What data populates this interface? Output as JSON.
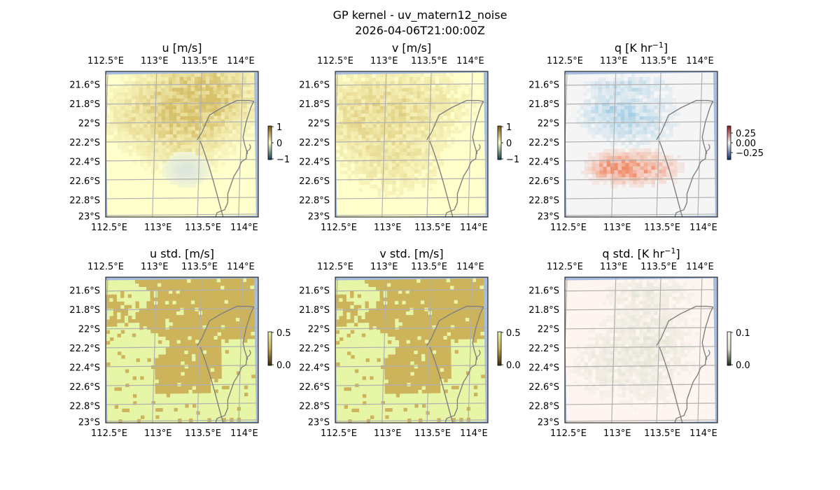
{
  "figure": {
    "title_line1": "GP kernel - uv_matern12_noise",
    "title_line2": "2026-04-06T21:00:00Z"
  },
  "chart_data": [
    {
      "type": "heatmap",
      "id": "u",
      "title": "u [m/s]",
      "lon_ticks": [
        "112.5°E",
        "113°E",
        "113.5°E",
        "114°E"
      ],
      "lat_ticks": [
        "21.6°S",
        "21.8°S",
        "22°S",
        "22.2°S",
        "22.4°S",
        "22.6°S",
        "22.8°S",
        "23°S"
      ],
      "colorbar": {
        "ticks": [
          "1",
          "0",
          "−1"
        ],
        "range": [
          -1,
          1
        ],
        "colors": [
          "#0a3d4f",
          "#ffffcc",
          "#7a5a08"
        ]
      },
      "field": "u"
    },
    {
      "type": "heatmap",
      "id": "v",
      "title": "v [m/s]",
      "lon_ticks": [
        "112.5°E",
        "113°E",
        "113.5°E",
        "114°E"
      ],
      "lat_ticks": [
        "21.6°S",
        "21.8°S",
        "22°S",
        "22.2°S",
        "22.4°S",
        "22.6°S",
        "22.8°S",
        "23°S"
      ],
      "colorbar": {
        "ticks": [
          "1",
          "0",
          "−1"
        ],
        "range": [
          -1,
          1
        ],
        "colors": [
          "#0a3d4f",
          "#ffffcc",
          "#7a5a08"
        ]
      },
      "field": "v"
    },
    {
      "type": "heatmap",
      "id": "q",
      "title": "q [K hr",
      "title_sup": "−1",
      "title_end": "]",
      "lon_ticks": [
        "112.5°E",
        "113°E",
        "113.5°E",
        "114°E"
      ],
      "lat_ticks": [
        "21.6°S",
        "21.8°S",
        "22°S",
        "22.2°S",
        "22.4°S",
        "22.6°S",
        "22.8°S",
        "23°S"
      ],
      "colorbar": {
        "ticks": [
          "0.25",
          "0.00",
          "−0.25"
        ],
        "range": [
          -0.4,
          0.4
        ],
        "colors": [
          "#08306b",
          "#f5f5f5",
          "#8b1a1a"
        ]
      },
      "field": "q"
    },
    {
      "type": "heatmap",
      "id": "ustd",
      "title": "u std. [m/s]",
      "lon_ticks": [
        "112.5°E",
        "113°E",
        "113.5°E",
        "114°E"
      ],
      "lat_ticks": [
        "21.6°S",
        "21.8°S",
        "22°S",
        "22.2°S",
        "22.4°S",
        "22.6°S",
        "22.8°S",
        "23°S"
      ],
      "colorbar": {
        "ticks": [
          "0.5",
          "0.0"
        ],
        "range": [
          0,
          0.5
        ],
        "colors": [
          "#3a2c0a",
          "#c9ad55",
          "#e6f5a6"
        ]
      },
      "field": "std"
    },
    {
      "type": "heatmap",
      "id": "vstd",
      "title": "v std. [m/s]",
      "lon_ticks": [
        "112.5°E",
        "113°E",
        "113.5°E",
        "114°E"
      ],
      "lat_ticks": [
        "21.6°S",
        "21.8°S",
        "22°S",
        "22.2°S",
        "22.4°S",
        "22.6°S",
        "22.8°S",
        "23°S"
      ],
      "colorbar": {
        "ticks": [
          "0.5",
          "0.0"
        ],
        "range": [
          0,
          0.5
        ],
        "colors": [
          "#3a2c0a",
          "#c9ad55",
          "#e6f5a6"
        ]
      },
      "field": "std"
    },
    {
      "type": "heatmap",
      "id": "qstd",
      "title": "q std. [K hr",
      "title_sup": "−1",
      "title_end": "]",
      "lon_ticks": [
        "112.5°E",
        "113°E",
        "113.5°E",
        "114°E"
      ],
      "lat_ticks": [
        "21.6°S",
        "21.8°S",
        "22°S",
        "22.2°S",
        "22.4°S",
        "22.6°S",
        "22.8°S",
        "23°S"
      ],
      "colorbar": {
        "ticks": [
          "0.1",
          "0.0"
        ],
        "range": [
          0,
          0.1
        ],
        "colors": [
          "#1a2a1a",
          "#dde3d0",
          "#fff5f0"
        ]
      },
      "field": "qstd"
    }
  ],
  "colors": {
    "ocean": "#a5bddf",
    "coast": "#808080",
    "grid": "#b0b0b0",
    "u_low": "#ffffcc",
    "u_high": "#d6c06a",
    "u_neg": "#dde6dc",
    "q_pos": "#f08e6b",
    "q_neg": "#8fc3e0",
    "q_zero": "#f5f5f5",
    "std_low": "#e6f5a6",
    "std_high": "#cdb35a",
    "qstd_low": "#fff5f0",
    "qstd_high": "#cfd9c4"
  }
}
